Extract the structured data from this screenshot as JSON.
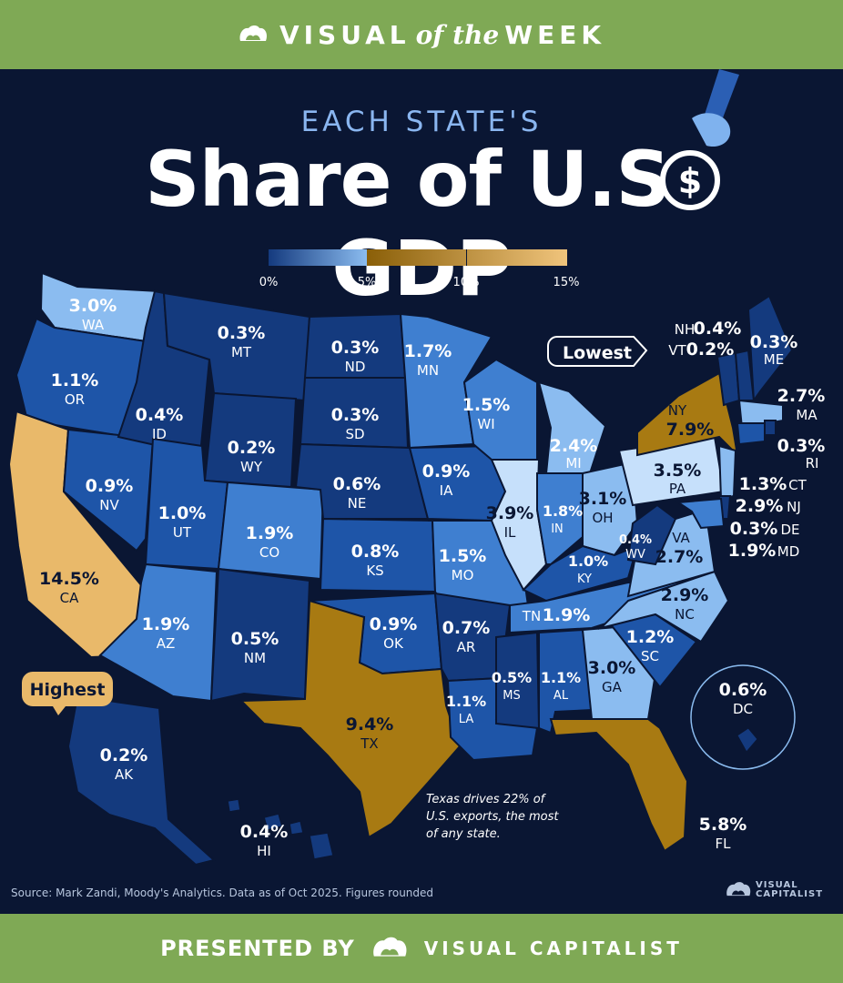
{
  "header": {
    "brand_left": "VISUAL",
    "brand_mid": "of the",
    "brand_right": "WEEK"
  },
  "kicker": "EACH STATE'S",
  "title": "Share of U.S. GDP",
  "legend": {
    "ticks": [
      "0%",
      "5%",
      "10%",
      "15%"
    ]
  },
  "colors": {
    "scale": [
      "#143a7e",
      "#1e55a8",
      "#3f7fd0",
      "#8bbcf0",
      "#c6e0fb",
      "#a87a12",
      "#e9b96a"
    ],
    "background": "#0a1633",
    "header_bar": "#7fa955"
  },
  "callouts": {
    "lowest": "Lowest",
    "highest": "Highest"
  },
  "note": [
    "Texas drives 22% of",
    "U.S. exports, the most",
    "of any state."
  ],
  "source": "Source: Mark Zandi, Moody's Analytics. Data as of Oct 2025. Figures rounded",
  "footer": {
    "presented_by": "PRESENTED BY",
    "company": "VISUAL CAPITALIST",
    "logo_line1": "VISUAL",
    "logo_line2": "CAPITALIST"
  },
  "chart_data": {
    "type": "choropleth",
    "unit": "% of U.S. GDP",
    "scale_range": [
      0,
      15
    ],
    "states": [
      {
        "abbr": "WA",
        "value": 3.0
      },
      {
        "abbr": "OR",
        "value": 1.1
      },
      {
        "abbr": "CA",
        "value": 14.5
      },
      {
        "abbr": "NV",
        "value": 0.9
      },
      {
        "abbr": "ID",
        "value": 0.4
      },
      {
        "abbr": "MT",
        "value": 0.3
      },
      {
        "abbr": "WY",
        "value": 0.2
      },
      {
        "abbr": "UT",
        "value": 1.0
      },
      {
        "abbr": "AZ",
        "value": 1.9
      },
      {
        "abbr": "CO",
        "value": 1.9
      },
      {
        "abbr": "NM",
        "value": 0.5
      },
      {
        "abbr": "ND",
        "value": 0.3
      },
      {
        "abbr": "SD",
        "value": 0.3
      },
      {
        "abbr": "NE",
        "value": 0.6
      },
      {
        "abbr": "KS",
        "value": 0.8
      },
      {
        "abbr": "OK",
        "value": 0.9
      },
      {
        "abbr": "TX",
        "value": 9.4
      },
      {
        "abbr": "MN",
        "value": 1.7
      },
      {
        "abbr": "IA",
        "value": 0.9
      },
      {
        "abbr": "MO",
        "value": 1.5
      },
      {
        "abbr": "AR",
        "value": 0.7
      },
      {
        "abbr": "LA",
        "value": 1.1
      },
      {
        "abbr": "WI",
        "value": 1.5
      },
      {
        "abbr": "IL",
        "value": 3.9
      },
      {
        "abbr": "MI",
        "value": 2.4
      },
      {
        "abbr": "IN",
        "value": 1.8
      },
      {
        "abbr": "OH",
        "value": 3.1
      },
      {
        "abbr": "KY",
        "value": 1.0
      },
      {
        "abbr": "TN",
        "value": 1.9
      },
      {
        "abbr": "MS",
        "value": 0.5
      },
      {
        "abbr": "AL",
        "value": 1.1
      },
      {
        "abbr": "GA",
        "value": 3.0
      },
      {
        "abbr": "FL",
        "value": 5.8
      },
      {
        "abbr": "SC",
        "value": 1.2
      },
      {
        "abbr": "NC",
        "value": 2.9
      },
      {
        "abbr": "VA",
        "value": 2.7
      },
      {
        "abbr": "WV",
        "value": 0.4
      },
      {
        "abbr": "PA",
        "value": 3.5
      },
      {
        "abbr": "NY",
        "value": 7.9
      },
      {
        "abbr": "VT",
        "value": 0.2
      },
      {
        "abbr": "NH",
        "value": 0.4
      },
      {
        "abbr": "ME",
        "value": 0.3
      },
      {
        "abbr": "MA",
        "value": 2.7
      },
      {
        "abbr": "RI",
        "value": 0.3
      },
      {
        "abbr": "CT",
        "value": 1.3
      },
      {
        "abbr": "NJ",
        "value": 2.9
      },
      {
        "abbr": "DE",
        "value": 0.3
      },
      {
        "abbr": "MD",
        "value": 1.9
      },
      {
        "abbr": "DC",
        "value": 0.6
      },
      {
        "abbr": "AK",
        "value": 0.2
      },
      {
        "abbr": "HI",
        "value": 0.4
      }
    ]
  }
}
